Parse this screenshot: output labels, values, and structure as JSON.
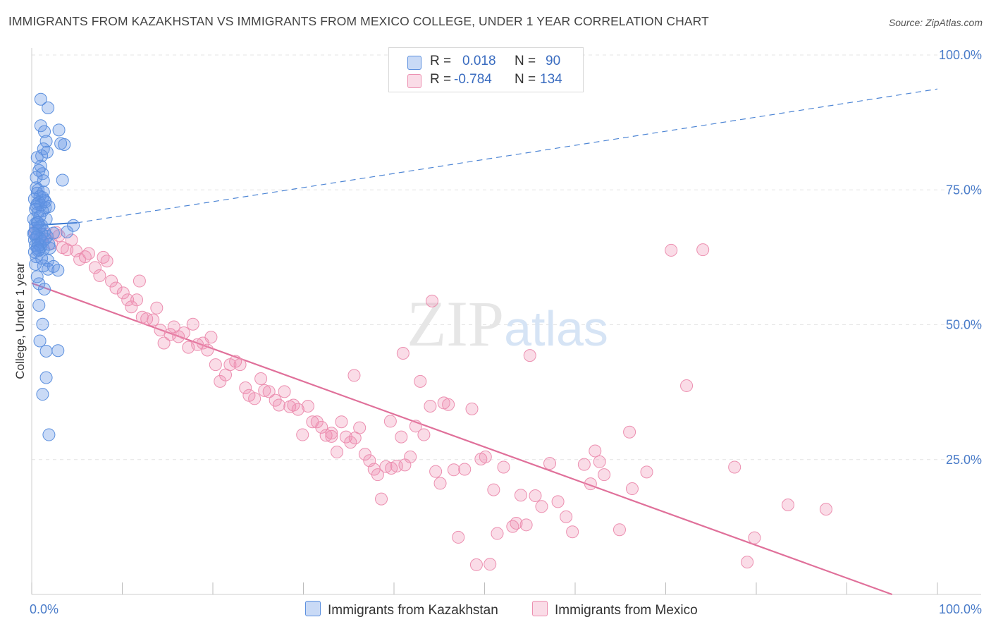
{
  "title": "IMMIGRANTS FROM KAZAKHSTAN VS IMMIGRANTS FROM MEXICO COLLEGE, UNDER 1 YEAR CORRELATION CHART",
  "source": "Source: ZipAtlas.com",
  "watermark": "ZIPatlas",
  "colors": {
    "kazakhstan_fill": "rgba(100,150,230,0.35)",
    "kazakhstan_stroke": "#5b8fde",
    "kazakhstan_line": "#3a78d0",
    "mexico_fill": "rgba(240,140,175,0.30)",
    "mexico_stroke": "#ec8fb0",
    "mexico_line": "#e0709a",
    "tick_text": "#4a7cc9"
  },
  "legend": {
    "rows": [
      {
        "r_label": "R =",
        "r_value": "0.018",
        "n_label": "N =",
        "n_value": "90"
      },
      {
        "r_label": "R =",
        "r_value": "-0.784",
        "n_label": "N =",
        "n_value": "134"
      }
    ]
  },
  "bottom_legend": {
    "kazakhstan": "Immigrants from Kazakhstan",
    "mexico": "Immigrants from Mexico"
  },
  "chart_data": {
    "type": "scatter",
    "title": "IMMIGRANTS FROM KAZAKHSTAN VS IMMIGRANTS FROM MEXICO COLLEGE, UNDER 1 YEAR CORRELATION CHART",
    "xlabel": "",
    "ylabel": "College, Under 1 year",
    "xlim": [
      0,
      100
    ],
    "ylim": [
      0,
      100
    ],
    "x_ticks": [
      "0.0%",
      "100.0%"
    ],
    "y_ticks": [
      "100.0%",
      "75.0%",
      "50.0%",
      "25.0%"
    ],
    "y_tick_values": [
      100,
      75,
      50,
      25
    ],
    "grid": true,
    "legend_position": "top-center",
    "series": [
      {
        "name": "Immigrants from Kazakhstan",
        "R": 0.018,
        "N": 90,
        "trend": {
          "x": [
            0,
            5
          ],
          "y": [
            68.4,
            68.9
          ],
          "extended": {
            "x": [
              5,
              100
            ],
            "y": [
              68.9,
              93.7
            ]
          }
        },
        "points": [
          [
            1.0,
            91.8
          ],
          [
            1.8,
            90.2
          ],
          [
            1.0,
            86.9
          ],
          [
            3.0,
            86.1
          ],
          [
            1.4,
            85.8
          ],
          [
            1.6,
            84.0
          ],
          [
            3.2,
            83.6
          ],
          [
            3.6,
            83.4
          ],
          [
            1.3,
            82.6
          ],
          [
            1.7,
            82.0
          ],
          [
            1.1,
            81.3
          ],
          [
            0.6,
            81.0
          ],
          [
            0.8,
            78.6
          ],
          [
            1.2,
            78.0
          ],
          [
            3.4,
            76.8
          ],
          [
            1.3,
            76.7
          ],
          [
            0.5,
            75.4
          ],
          [
            0.7,
            75.0
          ],
          [
            0.6,
            74.4
          ],
          [
            0.9,
            73.8
          ],
          [
            1.2,
            73.6
          ],
          [
            0.3,
            73.3
          ],
          [
            1.4,
            73.1
          ],
          [
            0.8,
            72.7
          ],
          [
            0.6,
            72.4
          ],
          [
            1.0,
            72.2
          ],
          [
            0.5,
            71.9
          ],
          [
            1.5,
            71.7
          ],
          [
            1.9,
            71.9
          ],
          [
            0.4,
            71.4
          ],
          [
            1.2,
            71.1
          ],
          [
            0.7,
            70.8
          ],
          [
            0.2,
            69.6
          ],
          [
            0.6,
            69.0
          ],
          [
            1.1,
            68.4
          ],
          [
            0.4,
            68.7
          ],
          [
            0.9,
            68.2
          ],
          [
            0.4,
            67.9
          ],
          [
            0.8,
            67.5
          ],
          [
            1.4,
            67.3
          ],
          [
            0.3,
            67.0
          ],
          [
            1.1,
            66.8
          ],
          [
            0.6,
            66.5
          ],
          [
            1.7,
            66.4
          ],
          [
            0.5,
            66.2
          ],
          [
            0.9,
            66.0
          ],
          [
            0.3,
            65.7
          ],
          [
            1.2,
            65.4
          ],
          [
            0.7,
            65.0
          ],
          [
            0.4,
            64.7
          ],
          [
            1.0,
            64.4
          ],
          [
            0.6,
            64.2
          ],
          [
            1.3,
            64.0
          ],
          [
            0.8,
            63.9
          ],
          [
            2.0,
            64.2
          ],
          [
            2.4,
            67.0
          ],
          [
            4.6,
            68.4
          ],
          [
            3.9,
            67.2
          ],
          [
            0.5,
            62.6
          ],
          [
            1.8,
            61.9
          ],
          [
            1.3,
            60.9
          ],
          [
            2.4,
            60.8
          ],
          [
            1.8,
            60.3
          ],
          [
            2.9,
            60.1
          ],
          [
            0.8,
            57.6
          ],
          [
            1.4,
            56.6
          ],
          [
            0.8,
            53.6
          ],
          [
            1.2,
            50.1
          ],
          [
            0.9,
            47.0
          ],
          [
            1.6,
            45.1
          ],
          [
            2.9,
            45.2
          ],
          [
            1.6,
            40.2
          ],
          [
            1.2,
            37.1
          ],
          [
            1.9,
            29.6
          ],
          [
            0.9,
            64.8
          ],
          [
            1.5,
            65.9
          ],
          [
            0.7,
            63.7
          ],
          [
            1.1,
            62.3
          ],
          [
            0.4,
            61.2
          ],
          [
            1.6,
            69.6
          ],
          [
            0.9,
            70.1
          ],
          [
            1.3,
            74.6
          ],
          [
            0.5,
            77.3
          ],
          [
            1.0,
            79.4
          ],
          [
            0.2,
            66.9
          ],
          [
            0.7,
            68.9
          ],
          [
            1.5,
            72.8
          ],
          [
            0.3,
            63.5
          ],
          [
            1.9,
            64.9
          ],
          [
            0.6,
            58.9
          ]
        ]
      },
      {
        "name": "Immigrants from Mexico",
        "R": -0.784,
        "N": 134,
        "trend": {
          "x": [
            0,
            95
          ],
          "y": [
            57.7,
            0
          ]
        },
        "points": [
          [
            0.4,
            67.2
          ],
          [
            1.5,
            66.8
          ],
          [
            2.7,
            67.1
          ],
          [
            3.0,
            66.5
          ],
          [
            1.1,
            65.8
          ],
          [
            2.2,
            65.1
          ],
          [
            3.4,
            64.3
          ],
          [
            3.9,
            63.9
          ],
          [
            4.4,
            65.7
          ],
          [
            4.9,
            63.7
          ],
          [
            5.3,
            62.1
          ],
          [
            5.9,
            62.6
          ],
          [
            6.3,
            63.2
          ],
          [
            7.0,
            60.6
          ],
          [
            7.5,
            59.1
          ],
          [
            7.9,
            62.5
          ],
          [
            8.3,
            61.8
          ],
          [
            8.8,
            58.1
          ],
          [
            9.3,
            56.8
          ],
          [
            10.1,
            55.9
          ],
          [
            10.6,
            54.6
          ],
          [
            11.0,
            53.3
          ],
          [
            11.6,
            54.6
          ],
          [
            11.9,
            58.1
          ],
          [
            12.2,
            51.4
          ],
          [
            12.7,
            51.1
          ],
          [
            13.4,
            50.9
          ],
          [
            13.8,
            53.1
          ],
          [
            14.2,
            49.0
          ],
          [
            14.6,
            46.6
          ],
          [
            15.3,
            48.2
          ],
          [
            15.7,
            49.6
          ],
          [
            16.2,
            47.8
          ],
          [
            16.8,
            48.5
          ],
          [
            17.3,
            45.8
          ],
          [
            17.8,
            50.1
          ],
          [
            18.3,
            46.3
          ],
          [
            18.9,
            46.6
          ],
          [
            19.4,
            45.3
          ],
          [
            19.8,
            47.7
          ],
          [
            20.3,
            42.6
          ],
          [
            20.8,
            39.5
          ],
          [
            21.4,
            40.7
          ],
          [
            21.9,
            42.6
          ],
          [
            22.5,
            43.2
          ],
          [
            23.0,
            42.6
          ],
          [
            23.6,
            38.3
          ],
          [
            24.0,
            36.9
          ],
          [
            24.6,
            36.3
          ],
          [
            25.3,
            40.0
          ],
          [
            25.7,
            37.8
          ],
          [
            26.2,
            37.6
          ],
          [
            26.9,
            36.0
          ],
          [
            27.3,
            35.1
          ],
          [
            27.9,
            37.6
          ],
          [
            28.5,
            34.8
          ],
          [
            28.9,
            35.1
          ],
          [
            29.4,
            34.3
          ],
          [
            29.9,
            29.6
          ],
          [
            30.5,
            34.9
          ],
          [
            31.0,
            32.0
          ],
          [
            31.5,
            32.0
          ],
          [
            32.0,
            31.0
          ],
          [
            32.5,
            29.5
          ],
          [
            33.1,
            29.3
          ],
          [
            33.7,
            26.4
          ],
          [
            34.2,
            32.0
          ],
          [
            34.7,
            29.2
          ],
          [
            35.2,
            28.2
          ],
          [
            35.7,
            29.0
          ],
          [
            36.2,
            30.9
          ],
          [
            36.8,
            26.0
          ],
          [
            37.3,
            24.8
          ],
          [
            37.8,
            23.2
          ],
          [
            38.2,
            22.2
          ],
          [
            38.6,
            17.7
          ],
          [
            39.1,
            23.7
          ],
          [
            39.7,
            23.4
          ],
          [
            40.3,
            23.8
          ],
          [
            40.8,
            29.2
          ],
          [
            41.2,
            24.0
          ],
          [
            41.8,
            25.5
          ],
          [
            42.4,
            31.2
          ],
          [
            42.9,
            39.5
          ],
          [
            43.3,
            29.6
          ],
          [
            44.0,
            34.9
          ],
          [
            44.6,
            22.8
          ],
          [
            45.1,
            20.6
          ],
          [
            45.5,
            35.5
          ],
          [
            46.0,
            35.2
          ],
          [
            46.6,
            23.1
          ],
          [
            47.1,
            10.6
          ],
          [
            47.8,
            23.2
          ],
          [
            48.6,
            34.4
          ],
          [
            49.1,
            5.5
          ],
          [
            49.6,
            25.1
          ],
          [
            50.1,
            25.5
          ],
          [
            50.6,
            5.6
          ],
          [
            51.0,
            19.4
          ],
          [
            51.4,
            11.3
          ],
          [
            52.1,
            23.6
          ],
          [
            53.1,
            12.6
          ],
          [
            53.5,
            13.2
          ],
          [
            54.0,
            18.4
          ],
          [
            54.6,
            12.9
          ],
          [
            55.6,
            18.3
          ],
          [
            56.3,
            16.3
          ],
          [
            57.2,
            24.3
          ],
          [
            58.1,
            17.2
          ],
          [
            59.0,
            14.4
          ],
          [
            59.7,
            11.6
          ],
          [
            61.0,
            24.1
          ],
          [
            61.7,
            20.5
          ],
          [
            62.2,
            26.6
          ],
          [
            62.7,
            24.6
          ],
          [
            63.2,
            22.2
          ],
          [
            64.9,
            12.0
          ],
          [
            66.0,
            30.1
          ],
          [
            66.3,
            19.6
          ],
          [
            67.9,
            22.7
          ],
          [
            70.6,
            63.8
          ],
          [
            72.3,
            38.7
          ],
          [
            74.1,
            63.9
          ],
          [
            77.6,
            23.6
          ],
          [
            79.0,
            6.0
          ],
          [
            79.8,
            10.5
          ],
          [
            83.5,
            16.6
          ],
          [
            87.7,
            15.8
          ],
          [
            41.0,
            44.7
          ],
          [
            44.2,
            54.4
          ],
          [
            55.0,
            44.3
          ],
          [
            35.6,
            40.6
          ],
          [
            33.1,
            29.9
          ],
          [
            39.6,
            32.1
          ]
        ]
      }
    ]
  }
}
